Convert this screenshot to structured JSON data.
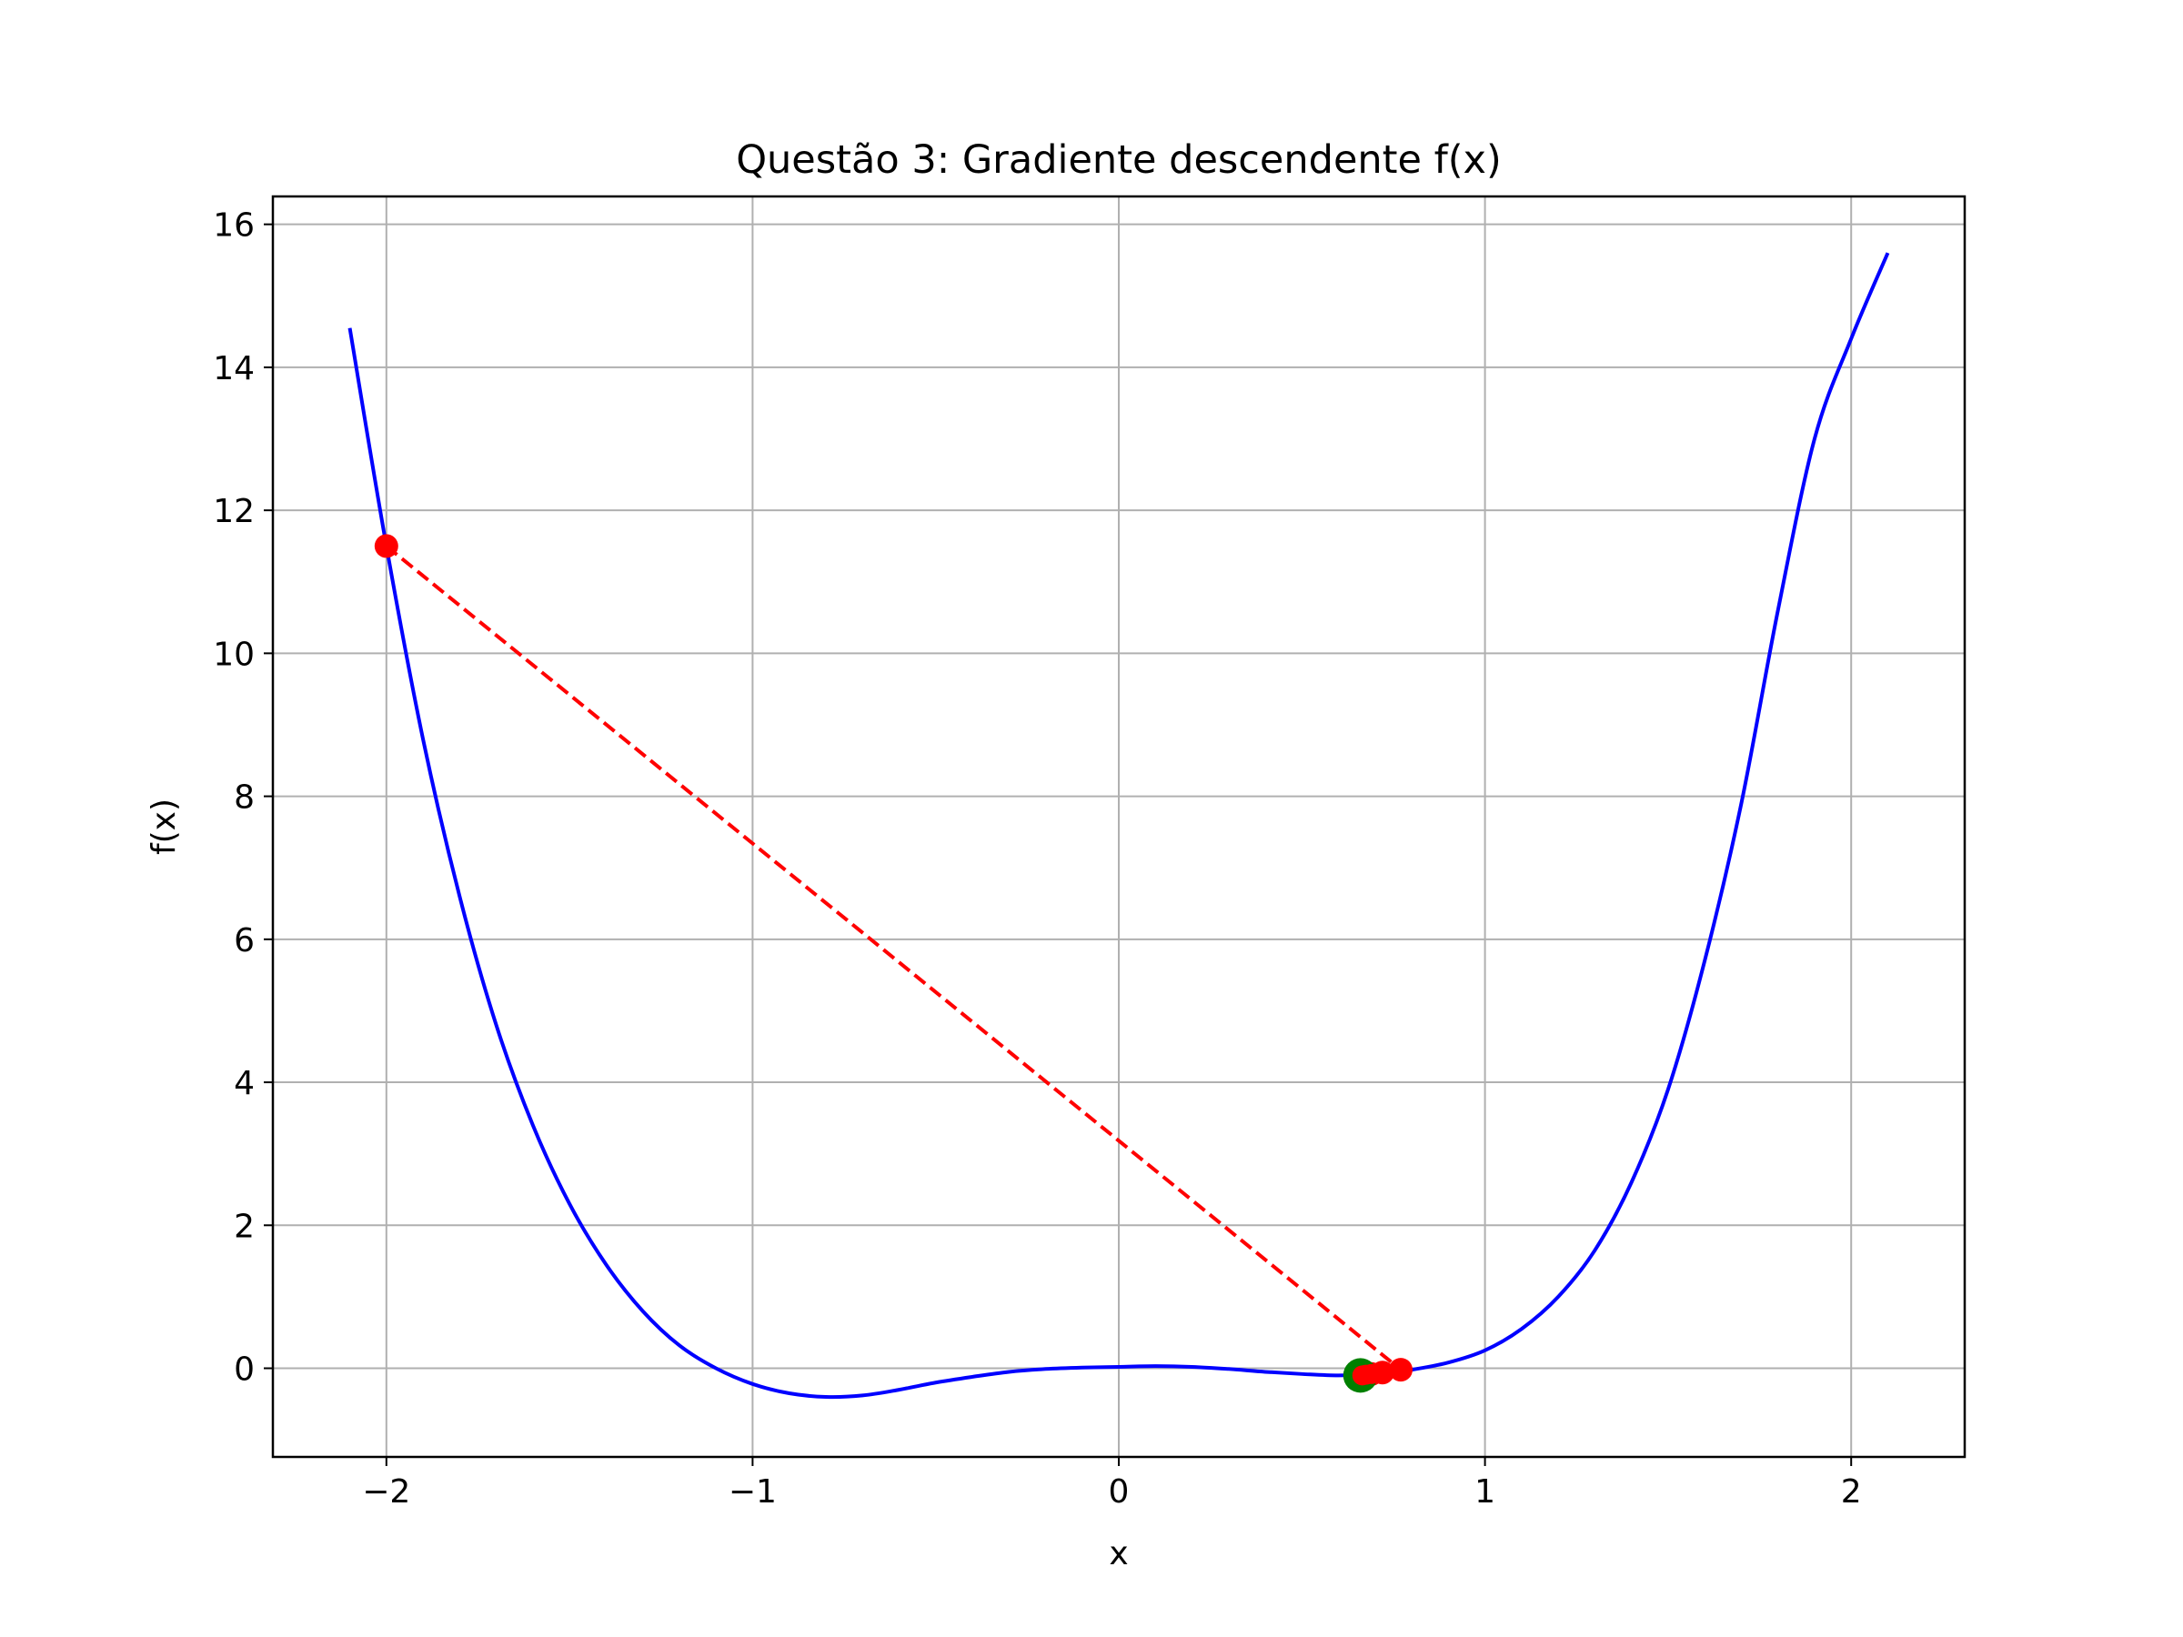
{
  "chart_data": {
    "type": "line",
    "title": "Questão 3: Gradiente descendente f(x)",
    "xlabel": "x",
    "ylabel": "f(x)",
    "xlim": [
      -2.31,
      2.31
    ],
    "ylim": [
      -1.24,
      16.39
    ],
    "x_ticks": [
      -2,
      -1,
      0,
      1,
      2
    ],
    "x_tick_labels": [
      "−2",
      "−1",
      "0",
      "1",
      "2"
    ],
    "y_ticks": [
      0,
      2,
      4,
      6,
      8,
      10,
      12,
      14,
      16
    ],
    "y_tick_labels": [
      "0",
      "2",
      "4",
      "6",
      "8",
      "10",
      "12",
      "14",
      "16"
    ],
    "grid": true,
    "series": [
      {
        "kind": "curve",
        "color": "#0000ff",
        "style": "solid",
        "x": [
          -2.1,
          -2.0,
          -1.9,
          -1.8,
          -1.7,
          -1.6,
          -1.5,
          -1.4,
          -1.3,
          -1.2,
          -1.1,
          -1.0,
          -0.9,
          -0.8,
          -0.7,
          -0.6,
          -0.5,
          -0.4,
          -0.3,
          -0.2,
          -0.1,
          0.0,
          0.1,
          0.2,
          0.3,
          0.4,
          0.5,
          0.6,
          0.7,
          0.8,
          0.9,
          1.0,
          1.1,
          1.2,
          1.3,
          1.4,
          1.5,
          1.6,
          1.7,
          1.8,
          1.9,
          2.0,
          2.1
        ],
        "y": [
          14.55,
          11.5,
          8.8,
          6.6,
          4.8,
          3.4,
          2.3,
          1.45,
          0.8,
          0.32,
          0.0,
          -0.22,
          -0.35,
          -0.4,
          -0.38,
          -0.3,
          -0.2,
          -0.12,
          -0.05,
          -0.01,
          0.01,
          0.02,
          0.03,
          0.02,
          -0.01,
          -0.05,
          -0.08,
          -0.1,
          -0.08,
          -0.02,
          0.08,
          0.25,
          0.55,
          1.0,
          1.65,
          2.6,
          3.9,
          5.7,
          7.9,
          10.6,
          13.0,
          14.4,
          15.6
        ]
      },
      {
        "kind": "descent-path",
        "color": "#ff0000",
        "style": "dashed",
        "marker": "circle",
        "x": [
          -2.0,
          0.77,
          0.72,
          0.69,
          0.675,
          0.665
        ],
        "y": [
          11.5,
          -0.02,
          -0.06,
          -0.08,
          -0.09,
          -0.1
        ]
      },
      {
        "kind": "final-point",
        "color": "#008000",
        "marker": "circle",
        "x": [
          0.66
        ],
        "y": [
          -0.1
        ]
      }
    ]
  }
}
